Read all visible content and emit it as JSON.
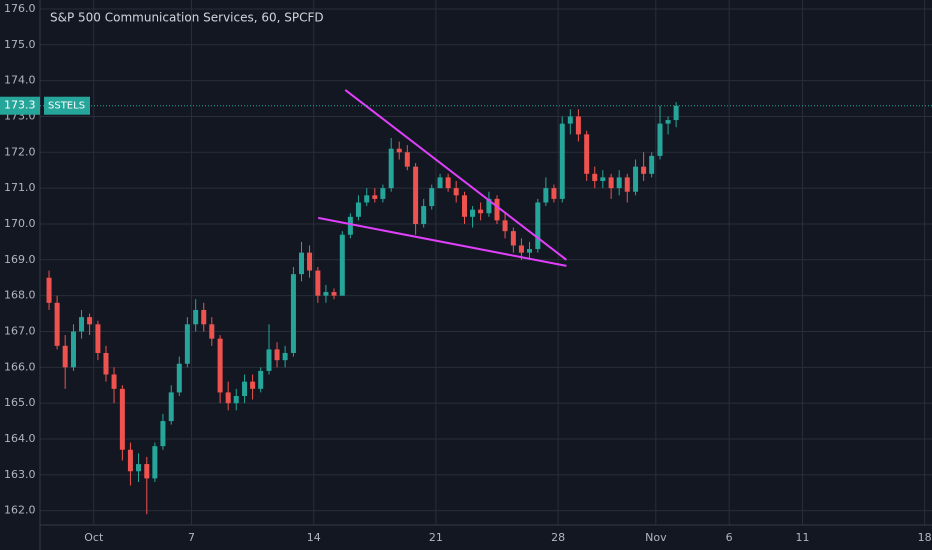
{
  "chart_data": {
    "type": "candlestick",
    "title": "S&P 500 Communication Services, 60, SPCFD",
    "symbol": "SSTELS",
    "last_price": 173.3,
    "up_color": "#26a69a",
    "down_color": "#ef5350",
    "grid": true,
    "xlim": [
      0.8,
      37.3
    ],
    "ylim": [
      161.6,
      176.25
    ],
    "yticks": [
      {
        "value": 162,
        "label": "162.0"
      },
      {
        "value": 163,
        "label": "163.0"
      },
      {
        "value": 164,
        "label": "164.0"
      },
      {
        "value": 165,
        "label": "165.0"
      },
      {
        "value": 166,
        "label": "166.0"
      },
      {
        "value": 167,
        "label": "167.0"
      },
      {
        "value": 168,
        "label": "168.0"
      },
      {
        "value": 169,
        "label": "169.0"
      },
      {
        "value": 170,
        "label": "170.0"
      },
      {
        "value": 171,
        "label": "171.0"
      },
      {
        "value": 172,
        "label": "172.0"
      },
      {
        "value": 173,
        "label": "173.0"
      },
      {
        "value": 174,
        "label": "174.0"
      },
      {
        "value": 175,
        "label": "175.0"
      },
      {
        "value": 176,
        "label": "176.0"
      }
    ],
    "xticks": [
      {
        "value": 3,
        "label": "Oct"
      },
      {
        "value": 7,
        "label": "7"
      },
      {
        "value": 12,
        "label": "14"
      },
      {
        "value": 17,
        "label": "21"
      },
      {
        "value": 22,
        "label": "28"
      },
      {
        "value": 26,
        "label": "Nov"
      },
      {
        "value": 29,
        "label": "6"
      },
      {
        "value": 32,
        "label": "11"
      },
      {
        "value": 37,
        "label": "18"
      }
    ],
    "x": [
      1.17,
      1.5,
      1.83,
      2.17,
      2.5,
      2.83,
      3.17,
      3.5,
      3.83,
      4.17,
      4.5,
      4.83,
      5.17,
      5.5,
      5.83,
      6.17,
      6.5,
      6.83,
      7.17,
      7.5,
      7.83,
      8.17,
      8.5,
      8.83,
      9.17,
      9.5,
      9.83,
      10.17,
      10.5,
      10.83,
      11.17,
      11.5,
      11.83,
      12.17,
      12.5,
      12.83,
      13.17,
      13.5,
      13.83,
      14.17,
      14.5,
      14.83,
      15.17,
      15.5,
      15.83,
      16.17,
      16.5,
      16.83,
      17.17,
      17.5,
      17.83,
      18.17,
      18.5,
      18.83,
      19.17,
      19.5,
      19.83,
      20.17,
      20.5,
      20.83,
      21.17,
      21.5,
      21.83,
      22.17,
      22.5,
      22.83,
      23.17,
      23.5,
      23.83,
      24.17,
      24.5,
      24.83,
      25.17,
      25.5,
      25.83,
      26.17,
      26.5,
      26.83
    ],
    "open": [
      168.5,
      167.8,
      166.6,
      166.0,
      167.0,
      167.4,
      167.2,
      166.4,
      165.8,
      165.4,
      163.7,
      163.1,
      163.3,
      162.9,
      163.8,
      164.5,
      165.3,
      166.1,
      167.2,
      167.6,
      167.2,
      166.8,
      165.3,
      165.0,
      165.2,
      165.6,
      165.4,
      165.9,
      166.5,
      166.2,
      166.4,
      168.6,
      169.2,
      168.7,
      168.0,
      168.1,
      168.0,
      169.7,
      170.2,
      170.6,
      170.8,
      170.7,
      171.0,
      172.1,
      172.0,
      171.6,
      170.0,
      170.5,
      171.0,
      171.3,
      171.0,
      170.8,
      170.2,
      170.4,
      170.3,
      170.7,
      170.1,
      169.8,
      169.4,
      169.2,
      169.3,
      170.6,
      171.0,
      170.7,
      172.8,
      173.0,
      172.5,
      171.4,
      171.2,
      171.3,
      171.0,
      171.3,
      170.9,
      171.6,
      171.4,
      171.9,
      172.8,
      172.9
    ],
    "high": [
      168.7,
      168.0,
      166.9,
      167.2,
      167.6,
      167.5,
      167.3,
      166.6,
      166.0,
      165.5,
      163.9,
      163.6,
      163.5,
      163.9,
      164.7,
      165.5,
      166.3,
      167.4,
      167.9,
      167.8,
      167.4,
      166.9,
      165.6,
      165.4,
      165.8,
      165.8,
      166.0,
      167.2,
      166.7,
      166.6,
      168.8,
      169.5,
      169.4,
      168.8,
      168.3,
      168.2,
      169.8,
      170.3,
      170.8,
      171.0,
      171.0,
      171.1,
      172.4,
      172.3,
      172.2,
      171.7,
      170.7,
      171.1,
      171.4,
      171.4,
      171.2,
      170.9,
      170.5,
      170.6,
      170.9,
      170.8,
      170.3,
      169.9,
      169.6,
      169.5,
      170.7,
      171.3,
      171.1,
      173.0,
      173.2,
      173.2,
      172.6,
      171.6,
      171.5,
      171.4,
      171.5,
      171.4,
      171.8,
      172.0,
      172.0,
      173.3,
      173.0,
      173.4
    ],
    "low": [
      167.6,
      166.5,
      165.4,
      165.9,
      166.8,
      166.9,
      166.2,
      165.6,
      165.0,
      163.4,
      162.7,
      162.8,
      161.9,
      162.8,
      163.7,
      164.4,
      165.2,
      166.0,
      167.0,
      167.0,
      166.6,
      165.0,
      164.8,
      164.8,
      165.0,
      165.1,
      165.3,
      165.8,
      166.0,
      166.0,
      166.3,
      168.4,
      168.5,
      167.8,
      167.8,
      167.9,
      168.0,
      169.6,
      170.1,
      170.5,
      170.6,
      170.6,
      170.9,
      171.8,
      171.5,
      169.7,
      169.9,
      170.4,
      171.0,
      170.9,
      170.6,
      170.0,
      169.9,
      170.1,
      170.2,
      170.0,
      169.6,
      169.2,
      169.0,
      169.0,
      169.2,
      170.5,
      170.6,
      170.6,
      172.5,
      172.3,
      171.2,
      171.0,
      171.0,
      170.7,
      170.8,
      170.6,
      170.8,
      171.2,
      171.3,
      171.8,
      172.5,
      172.7
    ],
    "close": [
      167.8,
      166.6,
      166.0,
      167.0,
      167.4,
      167.2,
      166.4,
      165.8,
      165.4,
      163.7,
      163.1,
      163.3,
      162.9,
      163.8,
      164.5,
      165.3,
      166.1,
      167.2,
      167.6,
      167.2,
      166.8,
      165.3,
      165.0,
      165.2,
      165.6,
      165.4,
      165.9,
      166.5,
      166.2,
      166.4,
      168.6,
      169.2,
      168.7,
      168.0,
      168.1,
      168.0,
      169.7,
      170.2,
      170.6,
      170.8,
      170.7,
      171.0,
      172.1,
      172.0,
      171.6,
      170.0,
      170.5,
      171.0,
      171.3,
      171.0,
      170.8,
      170.2,
      170.4,
      170.3,
      170.7,
      170.1,
      169.8,
      169.4,
      169.2,
      169.3,
      170.6,
      171.0,
      170.7,
      172.8,
      173.0,
      172.5,
      171.4,
      171.2,
      171.3,
      171.0,
      171.3,
      170.9,
      171.6,
      171.4,
      171.9,
      172.8,
      172.9,
      173.3
    ],
    "trendlines": [
      {
        "color": "#e040fb",
        "x": [
          13.29,
          22.34
        ],
        "y": [
          173.74,
          169.0
        ]
      },
      {
        "color": "#e040fb",
        "x": [
          12.18,
          22.34
        ],
        "y": [
          170.17,
          168.83
        ]
      }
    ]
  }
}
